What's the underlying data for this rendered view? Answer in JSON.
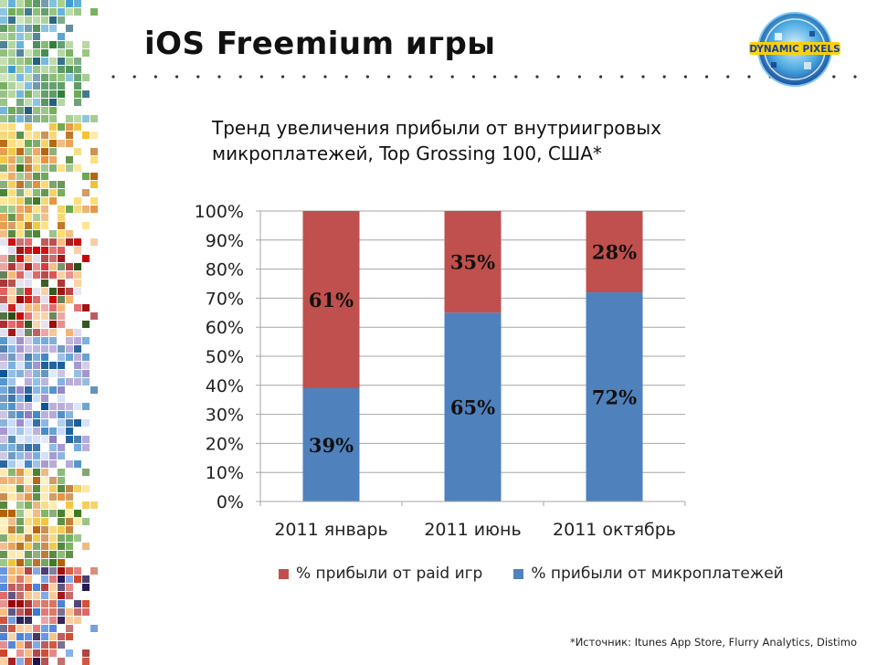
{
  "slide": {
    "title": "iOS Freemium игры",
    "logo_text": "DYNAMIC PIXELS",
    "source": "*Источник: Itunes App Store, Flurry Analytics, Distimo"
  },
  "colors": {
    "paid": "#C0504D",
    "micro": "#4F81BD",
    "grid": "#A6A6A6",
    "text": "#111111"
  },
  "chart_data": {
    "type": "bar",
    "stacked": true,
    "title_lines": [
      "Тренд увеличения прибыли от внутриигровых",
      "микроплатежей, Top Grossing 100, США*"
    ],
    "categories": [
      "2011 январь",
      "2011 июнь",
      "2011 октябрь"
    ],
    "series": [
      {
        "name": "% прибыли от  микроплатежей",
        "values": [
          39,
          65,
          72
        ],
        "labels": [
          "39%",
          "65%",
          "72%"
        ],
        "color": "#4F81BD"
      },
      {
        "name": "% прибыли от paid игр",
        "values": [
          61,
          35,
          28
        ],
        "labels": [
          "61%",
          "35%",
          "28%"
        ],
        "color": "#C0504D"
      }
    ],
    "legend_order": [
      1,
      0
    ],
    "legend_position": "bottom",
    "ylim": [
      0,
      100
    ],
    "yticks": [
      "0%",
      "10%",
      "20%",
      "30%",
      "40%",
      "50%",
      "60%",
      "70%",
      "80%",
      "90%",
      "100%"
    ],
    "grid": true
  }
}
